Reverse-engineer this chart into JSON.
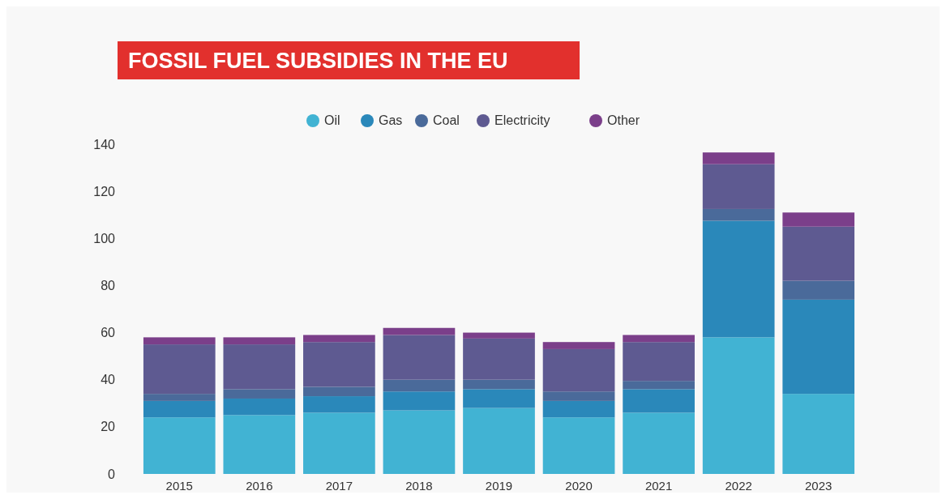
{
  "chart_data": {
    "type": "bar",
    "title": "FOSSIL FUEL SUBSIDIES IN THE EU",
    "stacked": true,
    "legend": "top",
    "grid": false,
    "categories": [
      "2015",
      "2016",
      "2017",
      "2018",
      "2019",
      "2020",
      "2021",
      "2022",
      "2023"
    ],
    "ylim": [
      0,
      140
    ],
    "yticks": [
      0,
      20,
      40,
      60,
      80,
      100,
      120,
      140
    ],
    "series": [
      {
        "name": "Oil",
        "color": "#41b3d3",
        "values": [
          24,
          25,
          26,
          27,
          28,
          24,
          26,
          58,
          34
        ]
      },
      {
        "name": "Gas",
        "color": "#2a88ba",
        "values": [
          7,
          7,
          7,
          8,
          8,
          7,
          10,
          49.5,
          40
        ]
      },
      {
        "name": "Coal",
        "color": "#4a6a9a",
        "values": [
          3,
          4,
          4,
          5,
          4,
          4,
          3.5,
          5,
          8
        ]
      },
      {
        "name": "Electricity",
        "color": "#5e5a91",
        "values": [
          21,
          19,
          19,
          19,
          17.5,
          18,
          16.5,
          19,
          23
        ]
      },
      {
        "name": "Other",
        "color": "#7b3f8a",
        "values": [
          3,
          3,
          3,
          3,
          2.5,
          3,
          3,
          5,
          6
        ]
      }
    ]
  }
}
